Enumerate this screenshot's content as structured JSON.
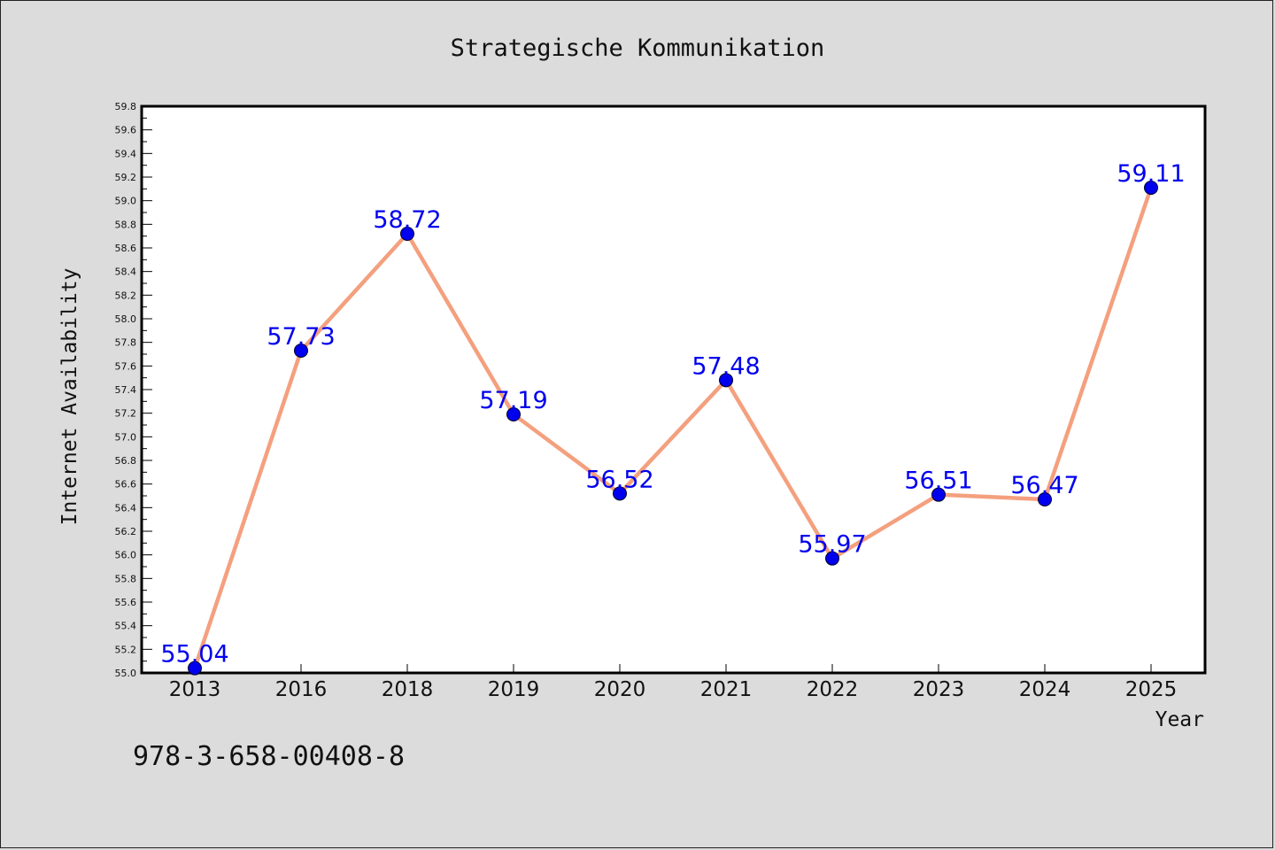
{
  "chart_data": {
    "type": "line",
    "title": "Strategische Kommunikation",
    "xlabel": "Year",
    "ylabel": "Internet Availability",
    "categories": [
      "2013",
      "2016",
      "2018",
      "2019",
      "2020",
      "2021",
      "2022",
      "2023",
      "2024",
      "2025"
    ],
    "values": [
      55.04,
      57.73,
      58.72,
      57.19,
      56.52,
      57.48,
      55.97,
      56.51,
      56.47,
      59.11
    ],
    "data_labels": [
      "55.04",
      "57.73",
      "58.72",
      "57.19",
      "56.52",
      "57.48",
      "55.97",
      "56.51",
      "56.47",
      "59.11"
    ],
    "ylim": [
      55.0,
      59.8
    ],
    "yticks": [
      "55.0",
      "55.2",
      "55.4",
      "55.6",
      "55.8",
      "56.0",
      "56.2",
      "56.4",
      "56.6",
      "56.8",
      "57.0",
      "57.2",
      "57.4",
      "57.6",
      "57.8",
      "58.0",
      "58.2",
      "58.4",
      "58.6",
      "58.8",
      "59.0",
      "59.2",
      "59.4",
      "59.6",
      "59.8"
    ],
    "grid": false,
    "line_color": "#f4a07e",
    "marker_color": "#0000ee",
    "label_color": "#0000ee"
  },
  "footer": {
    "isbn": "978-3-658-00408-8"
  }
}
